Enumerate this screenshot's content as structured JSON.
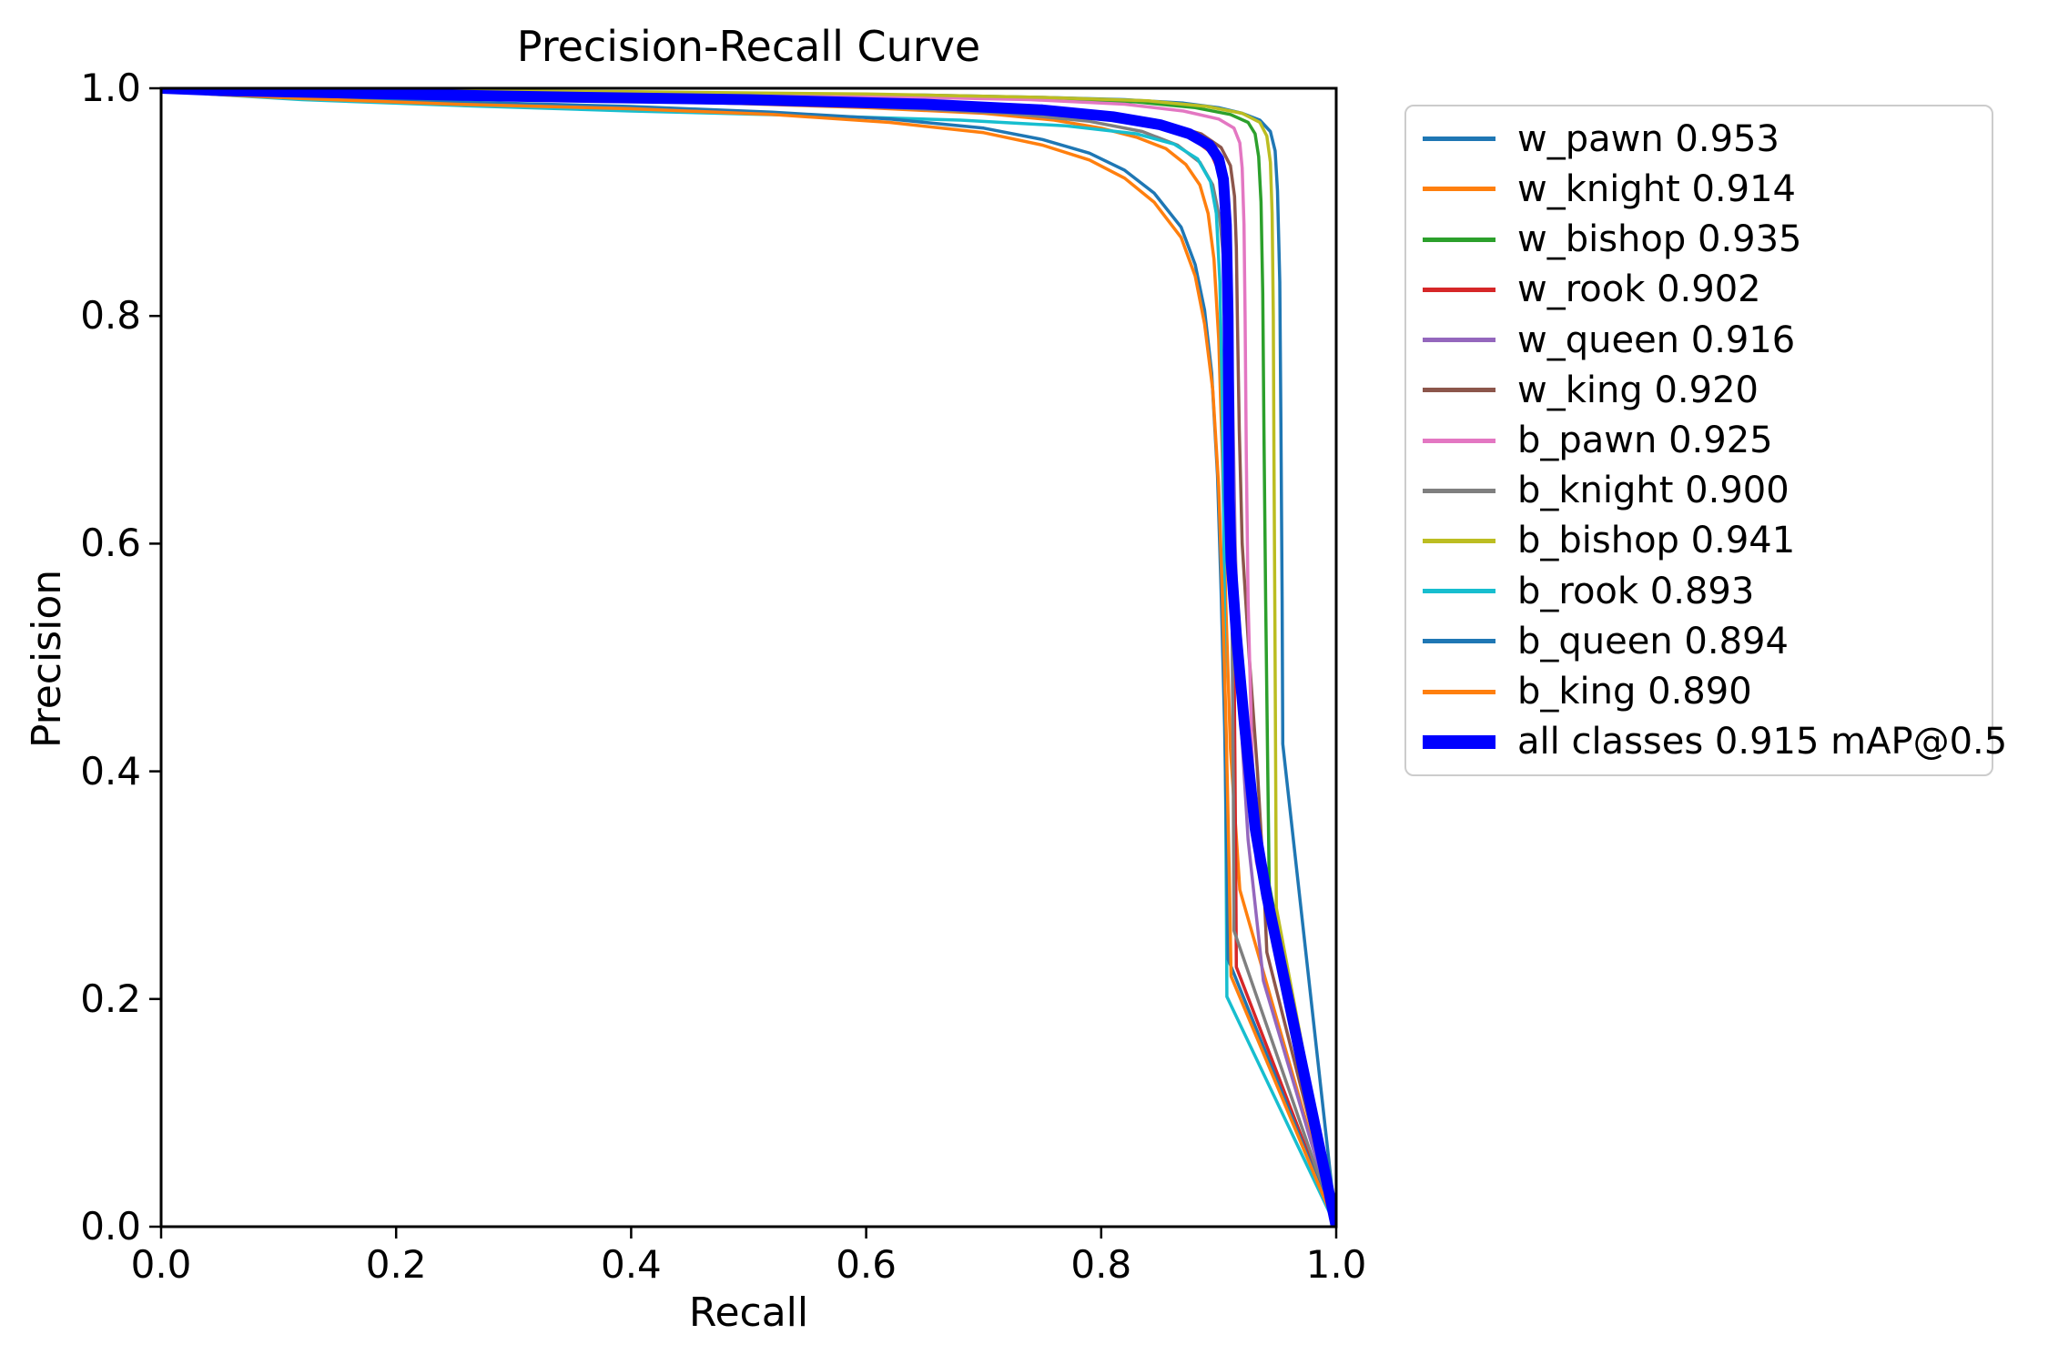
{
  "title": "Precision-Recall Curve",
  "chart_data": {
    "type": "line",
    "title": "Precision-Recall Curve",
    "xlabel": "Recall",
    "ylabel": "Precision",
    "xlim": [
      0.0,
      1.0
    ],
    "ylim": [
      0.0,
      1.0
    ],
    "grid": false,
    "legend_position": "outside-right",
    "xtick_labels": [
      "0.0",
      "0.2",
      "0.4",
      "0.6",
      "0.8",
      "1.0"
    ],
    "ytick_labels": [
      "0.0",
      "0.2",
      "0.4",
      "0.6",
      "0.8",
      "1.0"
    ],
    "xticks": [
      0.0,
      0.2,
      0.4,
      0.6,
      0.8,
      1.0
    ],
    "yticks": [
      0.0,
      0.2,
      0.4,
      0.6,
      0.8,
      1.0
    ],
    "series": [
      {
        "name": "w_pawn",
        "ap": 0.953,
        "label": "w_pawn 0.953",
        "color": "#1f77b4",
        "linewidth": 3.5,
        "points": [
          [
            0,
            1
          ],
          [
            0.05,
            0.999
          ],
          [
            0.15,
            0.998
          ],
          [
            0.3,
            0.997
          ],
          [
            0.5,
            0.995
          ],
          [
            0.65,
            0.994
          ],
          [
            0.75,
            0.992
          ],
          [
            0.82,
            0.99
          ],
          [
            0.87,
            0.987
          ],
          [
            0.9,
            0.983
          ],
          [
            0.92,
            0.978
          ],
          [
            0.935,
            0.972
          ],
          [
            0.944,
            0.962
          ],
          [
            0.948,
            0.945
          ],
          [
            0.95,
            0.91
          ],
          [
            0.952,
            0.83
          ],
          [
            0.953,
            0.7
          ],
          [
            0.954,
            0.55
          ],
          [
            0.9545,
            0.424
          ],
          [
            1,
            0
          ]
        ]
      },
      {
        "name": "w_knight",
        "ap": 0.914,
        "label": "w_knight 0.914",
        "color": "#ff7f0e",
        "linewidth": 3.5,
        "points": [
          [
            0,
            1
          ],
          [
            0.05,
            0.998
          ],
          [
            0.15,
            0.995
          ],
          [
            0.3,
            0.991
          ],
          [
            0.45,
            0.988
          ],
          [
            0.6,
            0.983
          ],
          [
            0.7,
            0.978
          ],
          [
            0.76,
            0.972
          ],
          [
            0.8,
            0.965
          ],
          [
            0.83,
            0.957
          ],
          [
            0.855,
            0.947
          ],
          [
            0.872,
            0.933
          ],
          [
            0.884,
            0.915
          ],
          [
            0.891,
            0.89
          ],
          [
            0.896,
            0.85
          ],
          [
            0.9,
            0.78
          ],
          [
            0.903,
            0.68
          ],
          [
            0.906,
            0.55
          ],
          [
            0.91,
            0.42
          ],
          [
            0.918,
            0.296
          ],
          [
            1,
            0
          ]
        ]
      },
      {
        "name": "w_bishop",
        "ap": 0.935,
        "label": "w_bishop 0.935",
        "color": "#2ca02c",
        "linewidth": 3.5,
        "points": [
          [
            0,
            1
          ],
          [
            0.05,
            0.999
          ],
          [
            0.2,
            0.998
          ],
          [
            0.4,
            0.996
          ],
          [
            0.6,
            0.994
          ],
          [
            0.75,
            0.991
          ],
          [
            0.83,
            0.988
          ],
          [
            0.88,
            0.983
          ],
          [
            0.91,
            0.977
          ],
          [
            0.925,
            0.97
          ],
          [
            0.931,
            0.96
          ],
          [
            0.934,
            0.94
          ],
          [
            0.936,
            0.9
          ],
          [
            0.9375,
            0.82
          ],
          [
            0.9385,
            0.7
          ],
          [
            0.94,
            0.55
          ],
          [
            0.9415,
            0.42
          ],
          [
            0.943,
            0.3
          ],
          [
            1,
            0
          ]
        ]
      },
      {
        "name": "w_rook",
        "ap": 0.902,
        "label": "w_rook 0.902",
        "color": "#d62728",
        "linewidth": 3.5,
        "points": [
          [
            0,
            1
          ],
          [
            0.05,
            0.998
          ],
          [
            0.2,
            0.995
          ],
          [
            0.4,
            0.991
          ],
          [
            0.6,
            0.987
          ],
          [
            0.73,
            0.982
          ],
          [
            0.8,
            0.976
          ],
          [
            0.845,
            0.968
          ],
          [
            0.875,
            0.958
          ],
          [
            0.893,
            0.944
          ],
          [
            0.901,
            0.925
          ],
          [
            0.906,
            0.89
          ],
          [
            0.909,
            0.83
          ],
          [
            0.911,
            0.73
          ],
          [
            0.9125,
            0.6
          ],
          [
            0.9135,
            0.45
          ],
          [
            0.9145,
            0.32
          ],
          [
            0.915,
            0.228
          ],
          [
            1,
            0
          ]
        ]
      },
      {
        "name": "w_queen",
        "ap": 0.916,
        "label": "w_queen 0.916",
        "color": "#9467bd",
        "linewidth": 3.5,
        "points": [
          [
            0,
            1
          ],
          [
            0.05,
            0.998
          ],
          [
            0.2,
            0.996
          ],
          [
            0.4,
            0.992
          ],
          [
            0.6,
            0.988
          ],
          [
            0.73,
            0.983
          ],
          [
            0.81,
            0.977
          ],
          [
            0.85,
            0.969
          ],
          [
            0.878,
            0.959
          ],
          [
            0.895,
            0.945
          ],
          [
            0.903,
            0.925
          ],
          [
            0.907,
            0.89
          ],
          [
            0.91,
            0.82
          ],
          [
            0.912,
            0.72
          ],
          [
            0.914,
            0.6
          ],
          [
            0.918,
            0.46
          ],
          [
            0.925,
            0.34
          ],
          [
            0.938,
            0.216
          ],
          [
            1,
            0
          ]
        ]
      },
      {
        "name": "w_king",
        "ap": 0.92,
        "label": "w_king 0.920",
        "color": "#8c564b",
        "linewidth": 3.5,
        "points": [
          [
            0,
            1
          ],
          [
            0.04,
            0.996
          ],
          [
            0.12,
            0.993
          ],
          [
            0.25,
            0.991
          ],
          [
            0.45,
            0.989
          ],
          [
            0.62,
            0.986
          ],
          [
            0.74,
            0.982
          ],
          [
            0.81,
            0.976
          ],
          [
            0.855,
            0.969
          ],
          [
            0.885,
            0.96
          ],
          [
            0.902,
            0.948
          ],
          [
            0.91,
            0.932
          ],
          [
            0.9135,
            0.905
          ],
          [
            0.915,
            0.86
          ],
          [
            0.916,
            0.79
          ],
          [
            0.9175,
            0.7
          ],
          [
            0.92,
            0.6
          ],
          [
            0.926,
            0.5
          ],
          [
            0.933,
            0.4
          ],
          [
            0.938,
            0.31
          ],
          [
            0.941,
            0.241
          ],
          [
            1,
            0
          ]
        ]
      },
      {
        "name": "b_pawn",
        "ap": 0.925,
        "label": "b_pawn 0.925",
        "color": "#e377c2",
        "linewidth": 3.5,
        "points": [
          [
            0,
            1
          ],
          [
            0.05,
            0.999
          ],
          [
            0.2,
            0.998
          ],
          [
            0.4,
            0.996
          ],
          [
            0.6,
            0.993
          ],
          [
            0.74,
            0.99
          ],
          [
            0.82,
            0.986
          ],
          [
            0.87,
            0.98
          ],
          [
            0.9,
            0.973
          ],
          [
            0.913,
            0.965
          ],
          [
            0.918,
            0.952
          ],
          [
            0.92,
            0.93
          ],
          [
            0.9215,
            0.88
          ],
          [
            0.9225,
            0.8
          ],
          [
            0.9235,
            0.68
          ],
          [
            0.925,
            0.55
          ],
          [
            0.928,
            0.43
          ],
          [
            0.932,
            0.321
          ],
          [
            1,
            0
          ]
        ]
      },
      {
        "name": "b_knight",
        "ap": 0.9,
        "label": "b_knight 0.900",
        "color": "#7f7f7f",
        "linewidth": 3.5,
        "points": [
          [
            0,
            1
          ],
          [
            0.05,
            0.997
          ],
          [
            0.2,
            0.993
          ],
          [
            0.4,
            0.989
          ],
          [
            0.6,
            0.984
          ],
          [
            0.72,
            0.978
          ],
          [
            0.79,
            0.971
          ],
          [
            0.835,
            0.962
          ],
          [
            0.865,
            0.95
          ],
          [
            0.884,
            0.935
          ],
          [
            0.895,
            0.915
          ],
          [
            0.901,
            0.885
          ],
          [
            0.905,
            0.84
          ],
          [
            0.908,
            0.77
          ],
          [
            0.91,
            0.66
          ],
          [
            0.9115,
            0.52
          ],
          [
            0.9125,
            0.38
          ],
          [
            0.913,
            0.26
          ],
          [
            1,
            0
          ]
        ]
      },
      {
        "name": "b_bishop",
        "ap": 0.941,
        "label": "b_bishop 0.941",
        "color": "#bcbd22",
        "linewidth": 3.5,
        "points": [
          [
            0,
            1
          ],
          [
            0.05,
            0.999
          ],
          [
            0.2,
            0.998
          ],
          [
            0.4,
            0.997
          ],
          [
            0.6,
            0.995
          ],
          [
            0.75,
            0.992
          ],
          [
            0.84,
            0.989
          ],
          [
            0.89,
            0.984
          ],
          [
            0.92,
            0.978
          ],
          [
            0.935,
            0.97
          ],
          [
            0.941,
            0.958
          ],
          [
            0.944,
            0.935
          ],
          [
            0.9455,
            0.89
          ],
          [
            0.9465,
            0.8
          ],
          [
            0.947,
            0.68
          ],
          [
            0.9478,
            0.54
          ],
          [
            0.9485,
            0.4
          ],
          [
            0.949,
            0.28
          ],
          [
            1,
            0
          ]
        ]
      },
      {
        "name": "b_rook",
        "ap": 0.893,
        "label": "b_rook 0.893",
        "color": "#17becf",
        "linewidth": 3.5,
        "points": [
          [
            0,
            1
          ],
          [
            0.04,
            0.995
          ],
          [
            0.12,
            0.99
          ],
          [
            0.25,
            0.985
          ],
          [
            0.4,
            0.98
          ],
          [
            0.55,
            0.976
          ],
          [
            0.68,
            0.972
          ],
          [
            0.77,
            0.967
          ],
          [
            0.83,
            0.96
          ],
          [
            0.862,
            0.951
          ],
          [
            0.882,
            0.938
          ],
          [
            0.893,
            0.918
          ],
          [
            0.898,
            0.89
          ],
          [
            0.901,
            0.83
          ],
          [
            0.903,
            0.73
          ],
          [
            0.9045,
            0.6
          ],
          [
            0.9055,
            0.44
          ],
          [
            0.9065,
            0.29
          ],
          [
            0.907,
            0.202
          ],
          [
            1,
            0
          ]
        ]
      },
      {
        "name": "b_queen",
        "ap": 0.894,
        "label": "b_queen 0.894",
        "color": "#1f77b4",
        "linewidth": 3.5,
        "points": [
          [
            0,
            1
          ],
          [
            0.04,
            0.996
          ],
          [
            0.12,
            0.992
          ],
          [
            0.25,
            0.988
          ],
          [
            0.4,
            0.984
          ],
          [
            0.52,
            0.979
          ],
          [
            0.62,
            0.973
          ],
          [
            0.7,
            0.965
          ],
          [
            0.75,
            0.955
          ],
          [
            0.79,
            0.943
          ],
          [
            0.82,
            0.928
          ],
          [
            0.845,
            0.908
          ],
          [
            0.868,
            0.878
          ],
          [
            0.88,
            0.845
          ],
          [
            0.888,
            0.805
          ],
          [
            0.894,
            0.75
          ],
          [
            0.899,
            0.66
          ],
          [
            0.902,
            0.56
          ],
          [
            0.905,
            0.44
          ],
          [
            0.907,
            0.32
          ],
          [
            0.908,
            0.235
          ],
          [
            1,
            0
          ]
        ]
      },
      {
        "name": "b_king",
        "ap": 0.89,
        "label": "b_king 0.890",
        "color": "#ff7f0e",
        "linewidth": 3.5,
        "points": [
          [
            0,
            1
          ],
          [
            0.04,
            0.995
          ],
          [
            0.12,
            0.991
          ],
          [
            0.25,
            0.986
          ],
          [
            0.4,
            0.982
          ],
          [
            0.52,
            0.977
          ],
          [
            0.62,
            0.97
          ],
          [
            0.7,
            0.961
          ],
          [
            0.75,
            0.95
          ],
          [
            0.79,
            0.937
          ],
          [
            0.82,
            0.921
          ],
          [
            0.845,
            0.9
          ],
          [
            0.868,
            0.869
          ],
          [
            0.88,
            0.835
          ],
          [
            0.888,
            0.793
          ],
          [
            0.895,
            0.735
          ],
          [
            0.9,
            0.65
          ],
          [
            0.9035,
            0.545
          ],
          [
            0.9065,
            0.43
          ],
          [
            0.909,
            0.31
          ],
          [
            0.9105,
            0.22
          ],
          [
            1,
            0
          ]
        ]
      },
      {
        "name": "all classes",
        "ap": 0.915,
        "label": "all classes 0.915 mAP@0.5",
        "color": "#0000ff",
        "linewidth": 12,
        "points": [
          [
            0,
            1
          ],
          [
            0.05,
            0.998
          ],
          [
            0.15,
            0.996
          ],
          [
            0.3,
            0.993
          ],
          [
            0.5,
            0.99
          ],
          [
            0.65,
            0.986
          ],
          [
            0.75,
            0.981
          ],
          [
            0.81,
            0.975
          ],
          [
            0.85,
            0.968
          ],
          [
            0.875,
            0.96
          ],
          [
            0.892,
            0.95
          ],
          [
            0.9,
            0.938
          ],
          [
            0.904,
            0.92
          ],
          [
            0.9065,
            0.88
          ],
          [
            0.908,
            0.8
          ],
          [
            0.9085,
            0.72
          ],
          [
            0.909,
            0.64
          ],
          [
            0.9105,
            0.585
          ],
          [
            0.915,
            0.52
          ],
          [
            0.922,
            0.44
          ],
          [
            0.931,
            0.35
          ],
          [
            0.941,
            0.29
          ],
          [
            1,
            0
          ]
        ]
      }
    ]
  }
}
